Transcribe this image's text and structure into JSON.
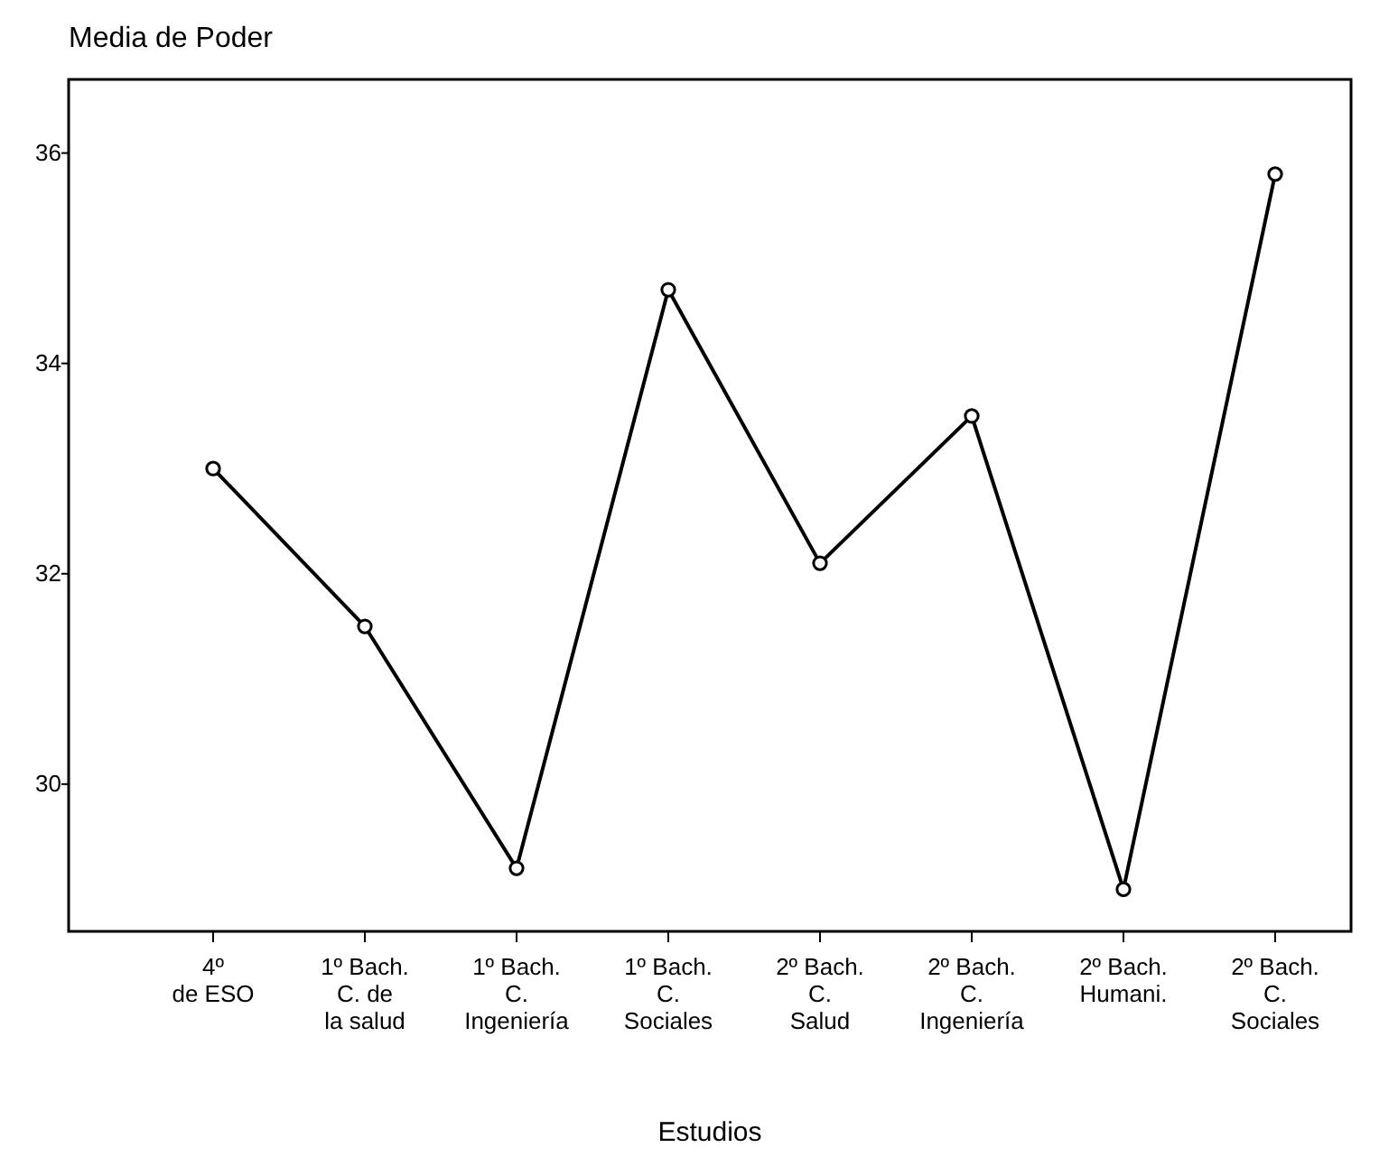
{
  "chart_data": {
    "type": "line",
    "title": "Media de Poder",
    "xlabel": "Estudios",
    "categories": [
      "4º\nde ESO",
      "1º Bach.\nC. de\nla salud",
      "1º Bach.\nC.\nIngeniería",
      "1º Bach.\nC.\nSociales",
      "2º Bach.\nC.\nSalud",
      "2º Bach.\nC.\nIngeniería",
      "2º Bach.\nHumani.",
      "2º Bach.\nC.\nSociales"
    ],
    "series": [
      {
        "color": "#000000",
        "values": [
          33.0,
          31.5,
          29.2,
          34.7,
          32.1,
          33.5,
          29.0,
          35.8
        ]
      }
    ],
    "ylim": [
      28.6,
      36.7
    ],
    "yticks": [
      30,
      32,
      34,
      36
    ],
    "marker": "circle",
    "line_style": "solid"
  }
}
